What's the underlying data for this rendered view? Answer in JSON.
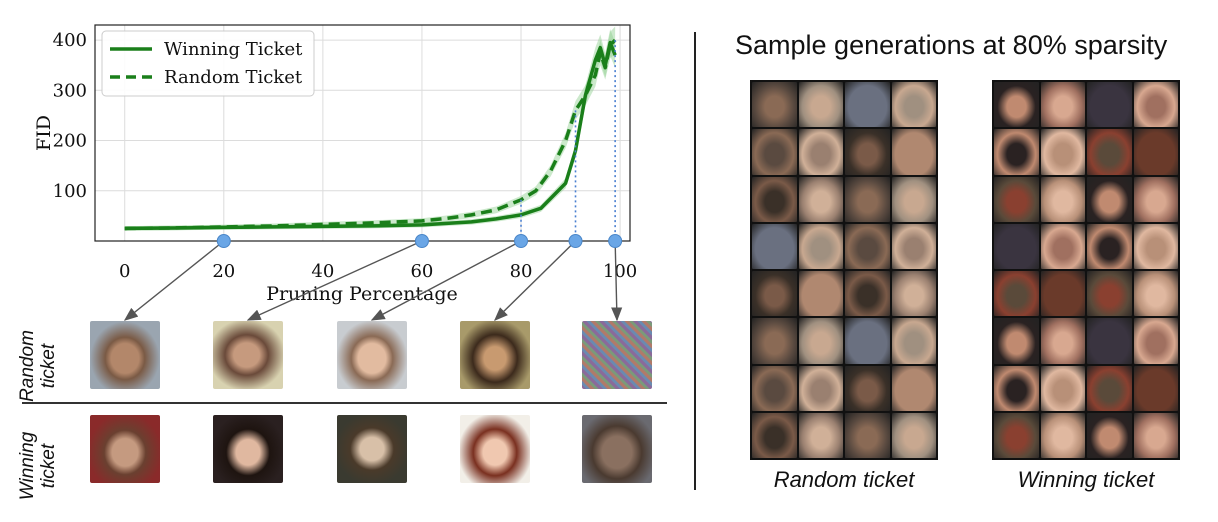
{
  "chart_data": {
    "type": "line",
    "xlabel": "Pruning Percentage",
    "ylabel": "FID",
    "xlim": [
      -6,
      102
    ],
    "ylim": [
      0,
      430
    ],
    "xticks": [
      0,
      20,
      40,
      60,
      80,
      100
    ],
    "yticks": [
      100,
      200,
      300,
      400
    ],
    "grid": true,
    "legend_position": "top-left",
    "series": [
      {
        "name": "Winning Ticket",
        "style": "solid",
        "color": "#1a7f1a",
        "x": [
          0,
          10,
          20,
          30,
          40,
          50,
          60,
          65,
          70,
          75,
          80,
          84,
          89,
          91,
          93,
          95,
          96,
          97,
          98,
          99
        ],
        "y": [
          25,
          26,
          27,
          28,
          29,
          30,
          32,
          35,
          38,
          44,
          52,
          65,
          115,
          180,
          290,
          360,
          385,
          350,
          395,
          370
        ]
      },
      {
        "name": "Random Ticket",
        "style": "dashed",
        "color": "#1a7f1a",
        "x": [
          0,
          10,
          20,
          30,
          40,
          50,
          60,
          65,
          70,
          75,
          80,
          83,
          86,
          89,
          91,
          93,
          95,
          96,
          97,
          98,
          99
        ],
        "y": [
          25,
          26,
          28,
          30,
          33,
          36,
          40,
          45,
          52,
          62,
          82,
          100,
          140,
          200,
          260,
          290,
          330,
          375,
          345,
          390,
          400
        ]
      }
    ],
    "markers": [
      20,
      60,
      80,
      91,
      99
    ]
  },
  "rows": {
    "random_label": "Random\nticket",
    "winning_label": "Winning\nticket"
  },
  "right_panel": {
    "title": "Sample generations at 80% sparsity",
    "random_caption": "Random ticket",
    "winning_caption": "Winning ticket"
  }
}
